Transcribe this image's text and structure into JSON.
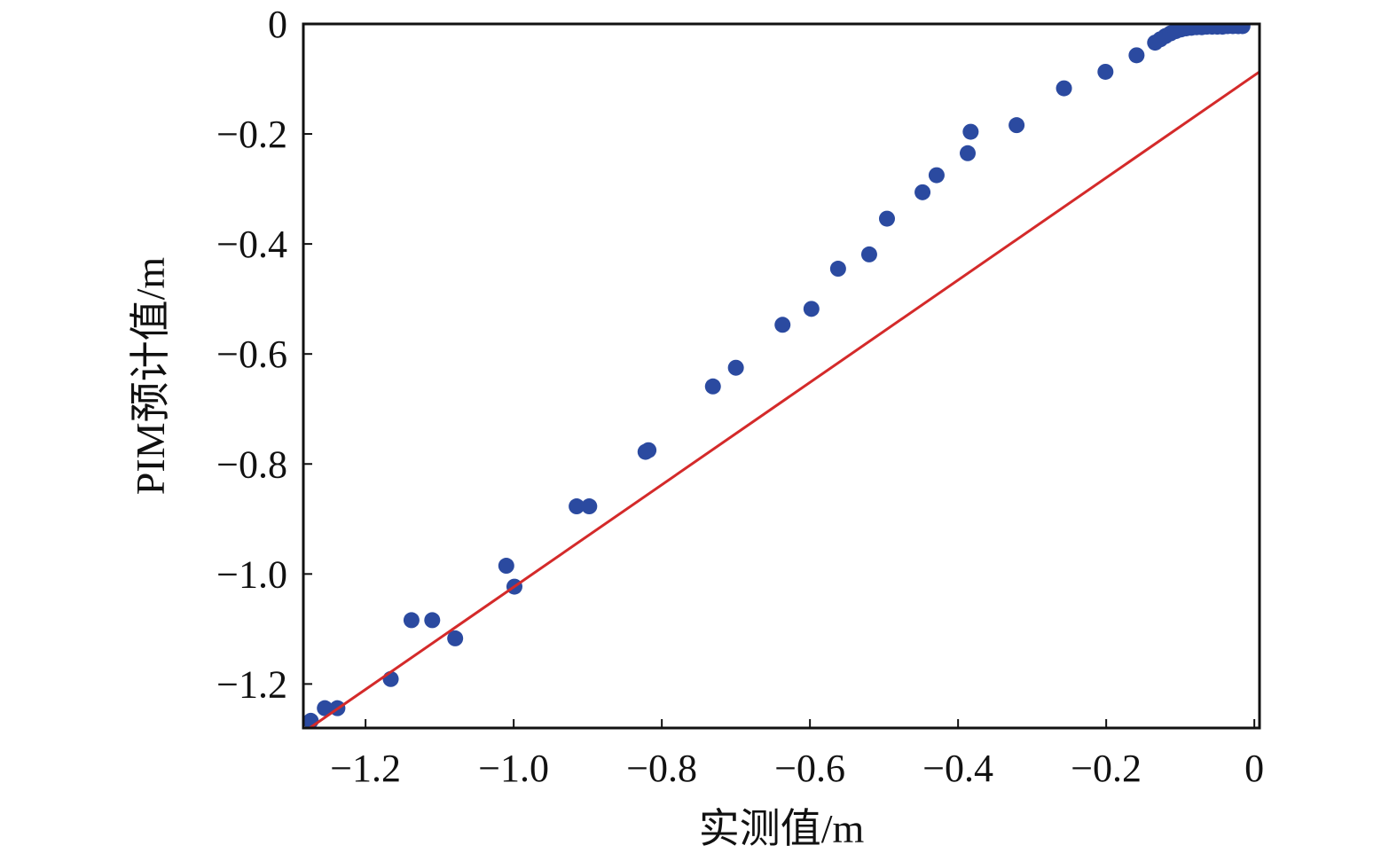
{
  "chart_data": {
    "type": "scatter",
    "title": "",
    "xlabel": "实测值/m",
    "ylabel": "PIM预计值/m",
    "xlim": [
      -1.284,
      0.007
    ],
    "ylim": [
      -1.28,
      0.0
    ],
    "grid": false,
    "xticks": [
      -1.2,
      -1.0,
      -0.8,
      -0.6,
      -0.4,
      -0.2,
      0
    ],
    "xtick_labels": [
      "−1.2",
      "−1.0",
      "−0.8",
      "−0.6",
      "−0.4",
      "−0.2",
      "0"
    ],
    "yticks": [
      0,
      -0.2,
      -0.4,
      -0.6,
      -0.8,
      -1.0,
      -1.2
    ],
    "ytick_labels": [
      "0",
      "−0.2",
      "−0.4",
      "−0.6",
      "−0.8",
      "−1.0",
      "−1.2"
    ],
    "series": [
      {
        "name": "points",
        "type": "scatter",
        "color": "#2b4aa0",
        "x": [
          -1.274,
          -1.255,
          -1.238,
          -1.166,
          -1.138,
          -1.11,
          -1.079,
          -1.01,
          -0.999,
          -0.915,
          -0.898,
          -0.822,
          -0.818,
          -0.731,
          -0.7,
          -0.637,
          -0.598,
          -0.562,
          -0.52,
          -0.496,
          -0.448,
          -0.429,
          -0.387,
          -0.383,
          -0.321,
          -0.257,
          -0.201,
          -0.159,
          -0.134,
          -0.127,
          -0.12,
          -0.113,
          -0.106,
          -0.099,
          -0.092,
          -0.085,
          -0.078,
          -0.071,
          -0.064,
          -0.057,
          -0.05,
          -0.043,
          -0.036,
          -0.029,
          -0.022,
          -0.016
        ],
        "y": [
          -1.267,
          -1.244,
          -1.244,
          -1.191,
          -1.084,
          -1.084,
          -1.117,
          -0.985,
          -1.023,
          -0.877,
          -0.877,
          -0.778,
          -0.775,
          -0.659,
          -0.625,
          -0.547,
          -0.518,
          -0.445,
          -0.419,
          -0.354,
          -0.306,
          -0.275,
          -0.235,
          -0.196,
          -0.184,
          -0.117,
          -0.087,
          -0.057,
          -0.034,
          -0.028,
          -0.022,
          -0.017,
          -0.013,
          -0.01,
          -0.008,
          -0.007,
          -0.006,
          -0.006,
          -0.005,
          -0.005,
          -0.005,
          -0.005,
          -0.004,
          -0.004,
          -0.004,
          -0.004
        ]
      },
      {
        "name": "fit-line",
        "type": "line",
        "color": "#d42a2a",
        "x": [
          -1.284,
          0.007
        ],
        "y": [
          -1.288,
          -0.087
        ]
      }
    ]
  }
}
